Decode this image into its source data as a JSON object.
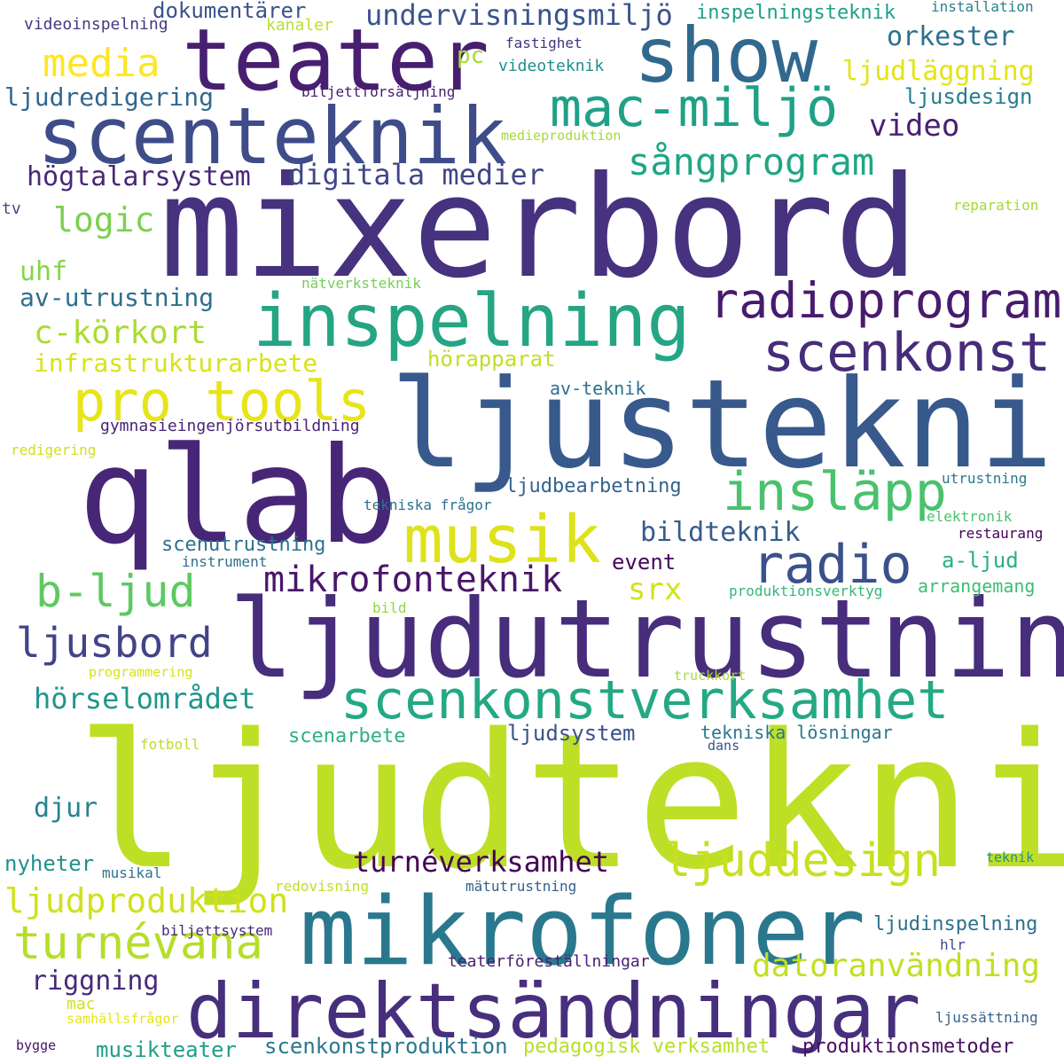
{
  "words": [
    {
      "text": "ljudteknik",
      "color": "#bddf26"
    },
    {
      "text": "mixerbord",
      "color": "#46327e"
    },
    {
      "text": "ljudutrustning",
      "color": "#472d7b"
    },
    {
      "text": "ljusteknik",
      "color": "#38598c"
    },
    {
      "text": "qlab",
      "color": "#482677"
    },
    {
      "text": "mikrofoner",
      "color": "#2a788e"
    },
    {
      "text": "direktsändningar",
      "color": "#472f7d"
    },
    {
      "text": "teater",
      "color": "#481f70"
    },
    {
      "text": "show",
      "color": "#31688e"
    },
    {
      "text": "scenteknik",
      "color": "#3e4c8a"
    },
    {
      "text": "inspelning",
      "color": "#25a584"
    },
    {
      "text": "scenkonstverksamhet",
      "color": "#23a983"
    },
    {
      "text": "musik",
      "color": "#dde318"
    },
    {
      "text": "insläpp",
      "color": "#4ac16d"
    },
    {
      "text": "radio",
      "color": "#3b518b"
    },
    {
      "text": "mac-miljö",
      "color": "#1fa188"
    },
    {
      "text": "radioprogram",
      "color": "#481b6d"
    },
    {
      "text": "scenkonst",
      "color": "#472c7a"
    },
    {
      "text": "pro tools",
      "color": "#e7e419"
    },
    {
      "text": "ljuddesign",
      "color": "#c8e020"
    },
    {
      "text": "turnévana",
      "color": "#b5de2b"
    },
    {
      "text": "sångprogram",
      "color": "#21a685"
    },
    {
      "text": "mikrofonteknik",
      "color": "#481769"
    },
    {
      "text": "b-ljud",
      "color": "#5ec962"
    },
    {
      "text": "ljusbord",
      "color": "#414487"
    },
    {
      "text": "media",
      "color": "#fde725"
    },
    {
      "text": "ljudproduktion",
      "color": "#d0e11c"
    },
    {
      "text": "datoranvändning",
      "color": "#c2df23"
    },
    {
      "text": "turnéverksamhet",
      "color": "#440154"
    },
    {
      "text": "c-körkort",
      "color": "#aadc32"
    },
    {
      "text": "högtalarsystem",
      "color": "#482878"
    },
    {
      "text": "digitala medier",
      "color": "#404688"
    },
    {
      "text": "hörselområdet",
      "color": "#1f968b"
    },
    {
      "text": "riggning",
      "color": "#472a7a"
    },
    {
      "text": "undervisningsmiljö",
      "color": "#3a548c"
    },
    {
      "text": "orkester",
      "color": "#2c718e"
    },
    {
      "text": "ljudläggning",
      "color": "#e2e418"
    },
    {
      "text": "infrastrukturarbete",
      "color": "#d8e219"
    },
    {
      "text": "av-utrustning",
      "color": "#2d708e"
    },
    {
      "text": "bildteknik",
      "color": "#375b8d"
    },
    {
      "text": "logic",
      "color": "#7ad151"
    },
    {
      "text": "video",
      "color": "#482071"
    },
    {
      "text": "ljudredigering",
      "color": "#31688e"
    },
    {
      "text": "djur",
      "color": "#26828e"
    },
    {
      "text": "hörapparat",
      "color": "#c0df25"
    },
    {
      "text": "ljudbearbetning",
      "color": "#33638d"
    },
    {
      "text": "ljudinspelning",
      "color": "#2c728e"
    },
    {
      "text": "dokumentärer",
      "color": "#3b528b"
    },
    {
      "text": "inspelningsteknik",
      "color": "#1fa088"
    },
    {
      "text": "scenutrustning",
      "color": "#2c728e"
    },
    {
      "text": "ljusdesign",
      "color": "#287d8e"
    },
    {
      "text": "uhf",
      "color": "#86d549"
    },
    {
      "text": "event",
      "color": "#46085c"
    },
    {
      "text": "a-ljud",
      "color": "#2ab07f"
    },
    {
      "text": "arrangemang",
      "color": "#3dbc74"
    },
    {
      "text": "scenarbete",
      "color": "#2db27d"
    },
    {
      "text": "ljudsystem",
      "color": "#3a538b"
    },
    {
      "text": "tekniska lösningar",
      "color": "#2a768e"
    },
    {
      "text": "srx",
      "color": "#d2e21b"
    },
    {
      "text": "pc",
      "color": "#a8db34"
    },
    {
      "text": "musikteater",
      "color": "#1f9e89"
    },
    {
      "text": "scenkonstproduktion",
      "color": "#2a788e"
    },
    {
      "text": "pedagogisk verksamhet",
      "color": "#b8de29"
    },
    {
      "text": "produktionsmetoder",
      "color": "#471063"
    },
    {
      "text": "teaterföreställningar",
      "color": "#482173"
    },
    {
      "text": "nyheter",
      "color": "#21918c"
    },
    {
      "text": "av-teknik",
      "color": "#2e6f8e"
    },
    {
      "text": "gymnasieingenjörsutbildning",
      "color": "#482576"
    },
    {
      "text": "biljettförsäljning",
      "color": "#481b6d"
    },
    {
      "text": "videoteknik",
      "color": "#218e8d"
    },
    {
      "text": "videoinspelning",
      "color": "#443983"
    },
    {
      "text": "kanaler",
      "color": "#bddf26"
    },
    {
      "text": "fastighet",
      "color": "#46337f"
    },
    {
      "text": "installation",
      "color": "#26828e"
    },
    {
      "text": "medieproduktion",
      "color": "#a5db36"
    },
    {
      "text": "tv",
      "color": "#3e4989"
    },
    {
      "text": "reparation",
      "color": "#a2da37"
    },
    {
      "text": "nätverksteknik",
      "color": "#75d054"
    },
    {
      "text": "redigering",
      "color": "#d0e11c"
    },
    {
      "text": "utrustning",
      "color": "#2a788e"
    },
    {
      "text": "tekniska frågor",
      "color": "#2c728e"
    },
    {
      "text": "elektronik",
      "color": "#4ac16d"
    },
    {
      "text": "restaurang",
      "color": "#450559"
    },
    {
      "text": "instrument",
      "color": "#2d708e"
    },
    {
      "text": "produktionsverktyg",
      "color": "#35b779"
    },
    {
      "text": "bild",
      "color": "#95d840"
    },
    {
      "text": "programmering",
      "color": "#d8e219"
    },
    {
      "text": "truckkort",
      "color": "#a8db34"
    },
    {
      "text": "fotboll",
      "color": "#bade28"
    },
    {
      "text": "dans",
      "color": "#3b528b"
    },
    {
      "text": "teknik",
      "color": "#21918c"
    },
    {
      "text": "musikal",
      "color": "#2a768e"
    },
    {
      "text": "redovisning",
      "color": "#bddf26"
    },
    {
      "text": "mätutrustning",
      "color": "#34618d"
    },
    {
      "text": "biljettsystem",
      "color": "#482878"
    },
    {
      "text": "hlr",
      "color": "#3e4989"
    },
    {
      "text": "mac",
      "color": "#d2e21b"
    },
    {
      "text": "samhällsfrågor",
      "color": "#e5e419"
    },
    {
      "text": "ljussättning",
      "color": "#33638d"
    },
    {
      "text": "bygge",
      "color": "#481467"
    }
  ]
}
